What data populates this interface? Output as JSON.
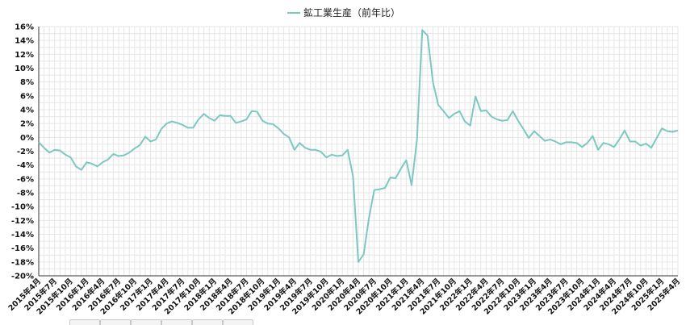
{
  "chart_data": {
    "type": "line",
    "legend": {
      "position": "top-center"
    },
    "grid": true,
    "ylim": [
      -20,
      16
    ],
    "yticks": [
      16,
      14,
      12,
      10,
      8,
      6,
      4,
      2,
      0,
      -2,
      -4,
      -6,
      -8,
      -10,
      -12,
      -14,
      -16,
      -18,
      -20
    ],
    "ytick_suffix": "%",
    "x_tick_labels": [
      "2015年4月",
      "2015年7月",
      "2015年10月",
      "2016年1月",
      "2016年4月",
      "2016年7月",
      "2016年10月",
      "2017年1月",
      "2017年4月",
      "2017年7月",
      "2017年10月",
      "2018年1月",
      "2018年4月",
      "2018年7月",
      "2018年10月",
      "2019年1月",
      "2019年4月",
      "2019年7月",
      "2019年10月",
      "2020年1月",
      "2020年4月",
      "2020年7月",
      "2020年10月",
      "2021年1月",
      "2021年4月",
      "2021年7月",
      "2021年10月",
      "2022年1月",
      "2022年4月",
      "2022年7月",
      "2022年10月",
      "2023年1月",
      "2023年4月",
      "2023年7月",
      "2023年10月",
      "2024年1月",
      "2024年4月",
      "2024年7月",
      "2024年10月",
      "2025年1月",
      "2025年4月"
    ],
    "series": [
      {
        "name": "鉱工業生産（前年比）",
        "color": "#7cc8c0",
        "values": [
          -0.7,
          -1.5,
          -2.2,
          -1.8,
          -1.9,
          -2.5,
          -2.9,
          -4.2,
          -4.7,
          -3.6,
          -3.8,
          -4.2,
          -3.6,
          -3.2,
          -2.4,
          -2.7,
          -2.6,
          -2.2,
          -1.6,
          -1.1,
          0.1,
          -0.6,
          -0.3,
          1.2,
          2.0,
          2.3,
          2.1,
          1.8,
          1.4,
          1.4,
          2.6,
          3.4,
          2.8,
          2.4,
          3.2,
          3.1,
          3.1,
          2.1,
          2.3,
          2.6,
          3.8,
          3.7,
          2.4,
          2.0,
          1.9,
          1.3,
          0.5,
          0.0,
          -1.8,
          -0.8,
          -1.5,
          -1.8,
          -1.8,
          -2.1,
          -2.9,
          -2.5,
          -2.7,
          -2.6,
          -1.8,
          -5.6,
          -18.0,
          -16.9,
          -11.6,
          -7.6,
          -7.5,
          -7.3,
          -5.8,
          -5.9,
          -4.5,
          -3.3,
          -6.9,
          -0.4,
          15.5,
          14.7,
          8.0,
          4.7,
          3.8,
          2.8,
          3.4,
          3.8,
          2.3,
          1.7,
          5.9,
          3.8,
          3.9,
          3.0,
          2.6,
          2.4,
          2.5,
          3.8,
          2.4,
          1.2,
          -0.1,
          0.9,
          0.2,
          -0.5,
          -0.3,
          -0.6,
          -1.0,
          -0.7,
          -0.7,
          -0.8,
          -1.4,
          -0.8,
          0.2,
          -1.8,
          -0.8,
          -1.0,
          -1.4,
          -0.3,
          1.0,
          -0.6,
          -0.6,
          -1.2,
          -0.9,
          -1.5,
          -0.1,
          1.3,
          0.9,
          0.8,
          1.0
        ]
      }
    ]
  }
}
